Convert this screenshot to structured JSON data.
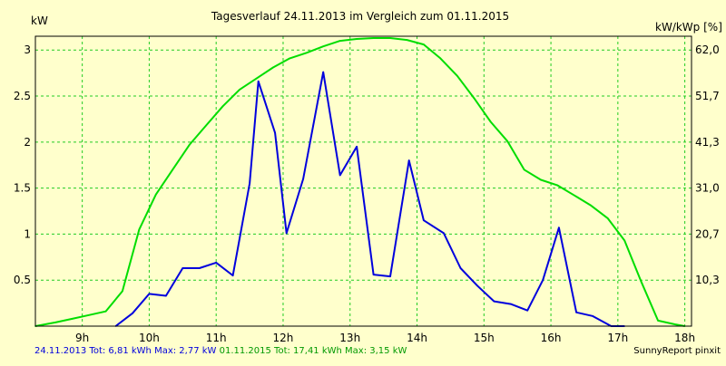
{
  "chart_data": {
    "type": "line",
    "title": "Tagesverlauf 24.11.2013 im Vergleich zum 01.11.2015",
    "ylabel_left": "kW",
    "ylabel_right": "kW/kWp [%]",
    "xlim": [
      8.3,
      18.1
    ],
    "ylim": [
      0,
      3.15
    ],
    "grid": true,
    "x_ticks": [
      {
        "value": 9,
        "label": "9h"
      },
      {
        "value": 10,
        "label": "10h"
      },
      {
        "value": 11,
        "label": "11h"
      },
      {
        "value": 12,
        "label": "12h"
      },
      {
        "value": 13,
        "label": "13h"
      },
      {
        "value": 14,
        "label": "14h"
      },
      {
        "value": 15,
        "label": "15h"
      },
      {
        "value": 16,
        "label": "16h"
      },
      {
        "value": 17,
        "label": "17h"
      },
      {
        "value": 18,
        "label": "18h"
      }
    ],
    "y_ticks_left": [
      {
        "value": 0.5,
        "label": "0.5"
      },
      {
        "value": 1,
        "label": "1"
      },
      {
        "value": 1.5,
        "label": "1.5"
      },
      {
        "value": 2,
        "label": "2"
      },
      {
        "value": 2.5,
        "label": "2.5"
      },
      {
        "value": 3,
        "label": "3"
      }
    ],
    "y_ticks_right": [
      {
        "value": 0.5,
        "label": "10,3"
      },
      {
        "value": 1,
        "label": "20,7"
      },
      {
        "value": 1.5,
        "label": "31,0"
      },
      {
        "value": 2,
        "label": "41,3"
      },
      {
        "value": 2.5,
        "label": "51,7"
      },
      {
        "value": 3,
        "label": "62,0"
      }
    ],
    "series": [
      {
        "name": "24.11.2013",
        "color": "#0000dd",
        "points": [
          [
            9.5,
            0.0
          ],
          [
            9.75,
            0.14
          ],
          [
            10.0,
            0.35
          ],
          [
            10.25,
            0.33
          ],
          [
            10.5,
            0.63
          ],
          [
            10.75,
            0.63
          ],
          [
            11.0,
            0.69
          ],
          [
            11.25,
            0.55
          ],
          [
            11.5,
            1.55
          ],
          [
            11.63,
            2.66
          ],
          [
            11.88,
            2.1
          ],
          [
            12.05,
            1.01
          ],
          [
            12.3,
            1.6
          ],
          [
            12.6,
            2.76
          ],
          [
            12.85,
            1.64
          ],
          [
            13.1,
            1.95
          ],
          [
            13.35,
            0.56
          ],
          [
            13.6,
            0.54
          ],
          [
            13.88,
            1.8
          ],
          [
            14.1,
            1.15
          ],
          [
            14.4,
            1.01
          ],
          [
            14.65,
            0.63
          ],
          [
            14.9,
            0.44
          ],
          [
            15.15,
            0.27
          ],
          [
            15.4,
            0.24
          ],
          [
            15.65,
            0.17
          ],
          [
            15.88,
            0.5
          ],
          [
            16.12,
            1.07
          ],
          [
            16.38,
            0.15
          ],
          [
            16.62,
            0.11
          ],
          [
            16.9,
            0.0
          ],
          [
            17.1,
            0.0
          ]
        ]
      },
      {
        "name": "01.11.2015",
        "color": "#00dd00",
        "points": [
          [
            8.3,
            0.0
          ],
          [
            8.6,
            0.04
          ],
          [
            8.85,
            0.08
          ],
          [
            9.1,
            0.12
          ],
          [
            9.35,
            0.16
          ],
          [
            9.6,
            0.38
          ],
          [
            9.85,
            1.05
          ],
          [
            10.1,
            1.43
          ],
          [
            10.35,
            1.7
          ],
          [
            10.6,
            1.97
          ],
          [
            10.85,
            2.18
          ],
          [
            11.1,
            2.39
          ],
          [
            11.35,
            2.57
          ],
          [
            11.6,
            2.69
          ],
          [
            11.85,
            2.81
          ],
          [
            12.1,
            2.91
          ],
          [
            12.35,
            2.97
          ],
          [
            12.6,
            3.04
          ],
          [
            12.85,
            3.1
          ],
          [
            13.1,
            3.12
          ],
          [
            13.35,
            3.13
          ],
          [
            13.6,
            3.13
          ],
          [
            13.85,
            3.11
          ],
          [
            14.1,
            3.06
          ],
          [
            14.35,
            2.91
          ],
          [
            14.6,
            2.72
          ],
          [
            14.85,
            2.48
          ],
          [
            15.1,
            2.22
          ],
          [
            15.35,
            2.01
          ],
          [
            15.6,
            1.7
          ],
          [
            15.85,
            1.59
          ],
          [
            16.1,
            1.53
          ],
          [
            16.35,
            1.42
          ],
          [
            16.6,
            1.31
          ],
          [
            16.85,
            1.17
          ],
          [
            17.1,
            0.93
          ],
          [
            17.35,
            0.48
          ],
          [
            17.6,
            0.06
          ],
          [
            17.85,
            0.02
          ],
          [
            18.0,
            0.0
          ]
        ]
      }
    ]
  },
  "footer": {
    "series1_text": "24.11.2013 Tot: 6,81 kWh Max: 2,77 kW",
    "series2_text": "01.11.2015 Tot: 17,41 kWh Max: 3,15 kW",
    "credit": "SunnyReport pinxit"
  }
}
